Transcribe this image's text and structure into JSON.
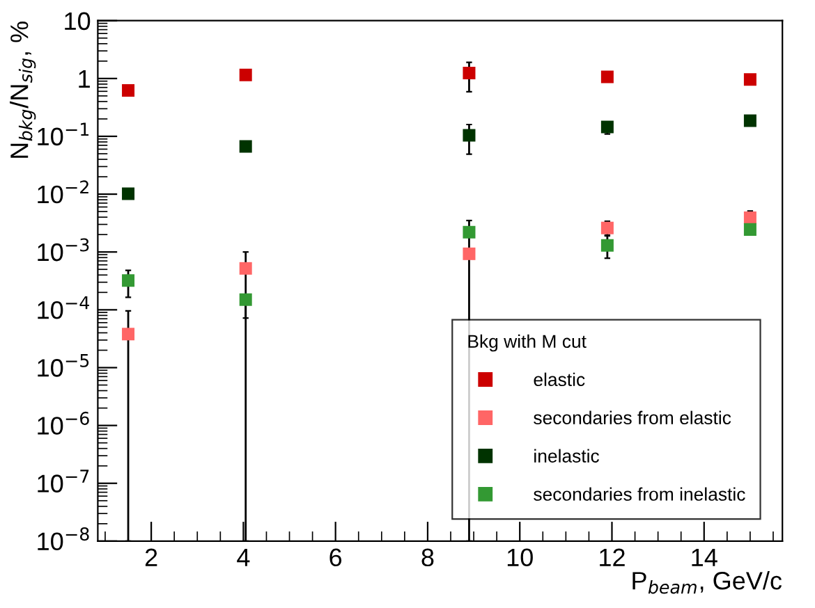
{
  "chart_data": {
    "type": "scatter",
    "xlabel": "P$_{beam}$, GeV/c",
    "ylabel": "N$_{bkg}$/N$_{sig}$, %",
    "legend_title": "Bkg with M cut",
    "legend": "bottom right",
    "marker": "square",
    "log": "y",
    "grid": false,
    "xlim": [
      0.84,
      15.7
    ],
    "xticks": [
      2,
      4,
      6,
      8,
      10,
      12,
      14
    ],
    "ylim": [
      1e-08,
      10
    ],
    "yticks": [
      {
        "value": 1e-08,
        "label": "10$^{−8}$"
      },
      {
        "value": 1e-07,
        "label": "10$^{−7}$"
      },
      {
        "value": 1e-06,
        "label": "10$^{−6}$"
      },
      {
        "value": 1e-05,
        "label": "10$^{−5}$"
      },
      {
        "value": 0.0001,
        "label": "10$^{−4}$"
      },
      {
        "value": 0.001,
        "label": "10$^{−3}$"
      },
      {
        "value": 0.01,
        "label": "10$^{−2}$"
      },
      {
        "value": 0.1,
        "label": "10$^{−1}$"
      },
      {
        "value": 1,
        "label": "1"
      },
      {
        "value": 10,
        "label": "10"
      }
    ],
    "x": [
      1.5,
      4.05,
      8.9,
      11.9,
      15.0
    ],
    "series": [
      {
        "name": "elastic",
        "color": "#cc0000",
        "values": [
          0.62,
          1.15,
          1.24,
          1.07,
          0.96
        ],
        "errors": [
          null,
          null,
          [
            0.59,
            1.9
          ],
          null,
          null
        ]
      },
      {
        "name": "secondaries from elastic",
        "color": "#ff6666",
        "values": [
          3.8e-05,
          0.00052,
          0.00093,
          0.0026,
          0.0039
        ],
        "errors": [
          [
            1e-08,
            9.6e-05
          ],
          [
            1e-08,
            0.001
          ],
          null,
          [
            0.0019,
            0.0034
          ],
          [
            0.003,
            0.0051
          ]
        ]
      },
      {
        "name": "inelastic",
        "color": "#003300",
        "values": [
          0.0102,
          0.067,
          0.104,
          0.145,
          0.186
        ],
        "errors": [
          null,
          null,
          [
            0.049,
            0.16
          ],
          [
            0.11,
            0.16
          ],
          null
        ]
      },
      {
        "name": "secondaries from inelastic",
        "color": "#339933",
        "values": [
          0.00032,
          0.00015,
          0.0022,
          0.0013,
          0.00245
        ],
        "errors": [
          [
            0.000165,
            0.00048
          ],
          [
            7.2e-05,
            0.00018
          ],
          [
            1e-08,
            0.0035
          ],
          [
            0.00078,
            0.00195
          ],
          null
        ]
      }
    ]
  }
}
